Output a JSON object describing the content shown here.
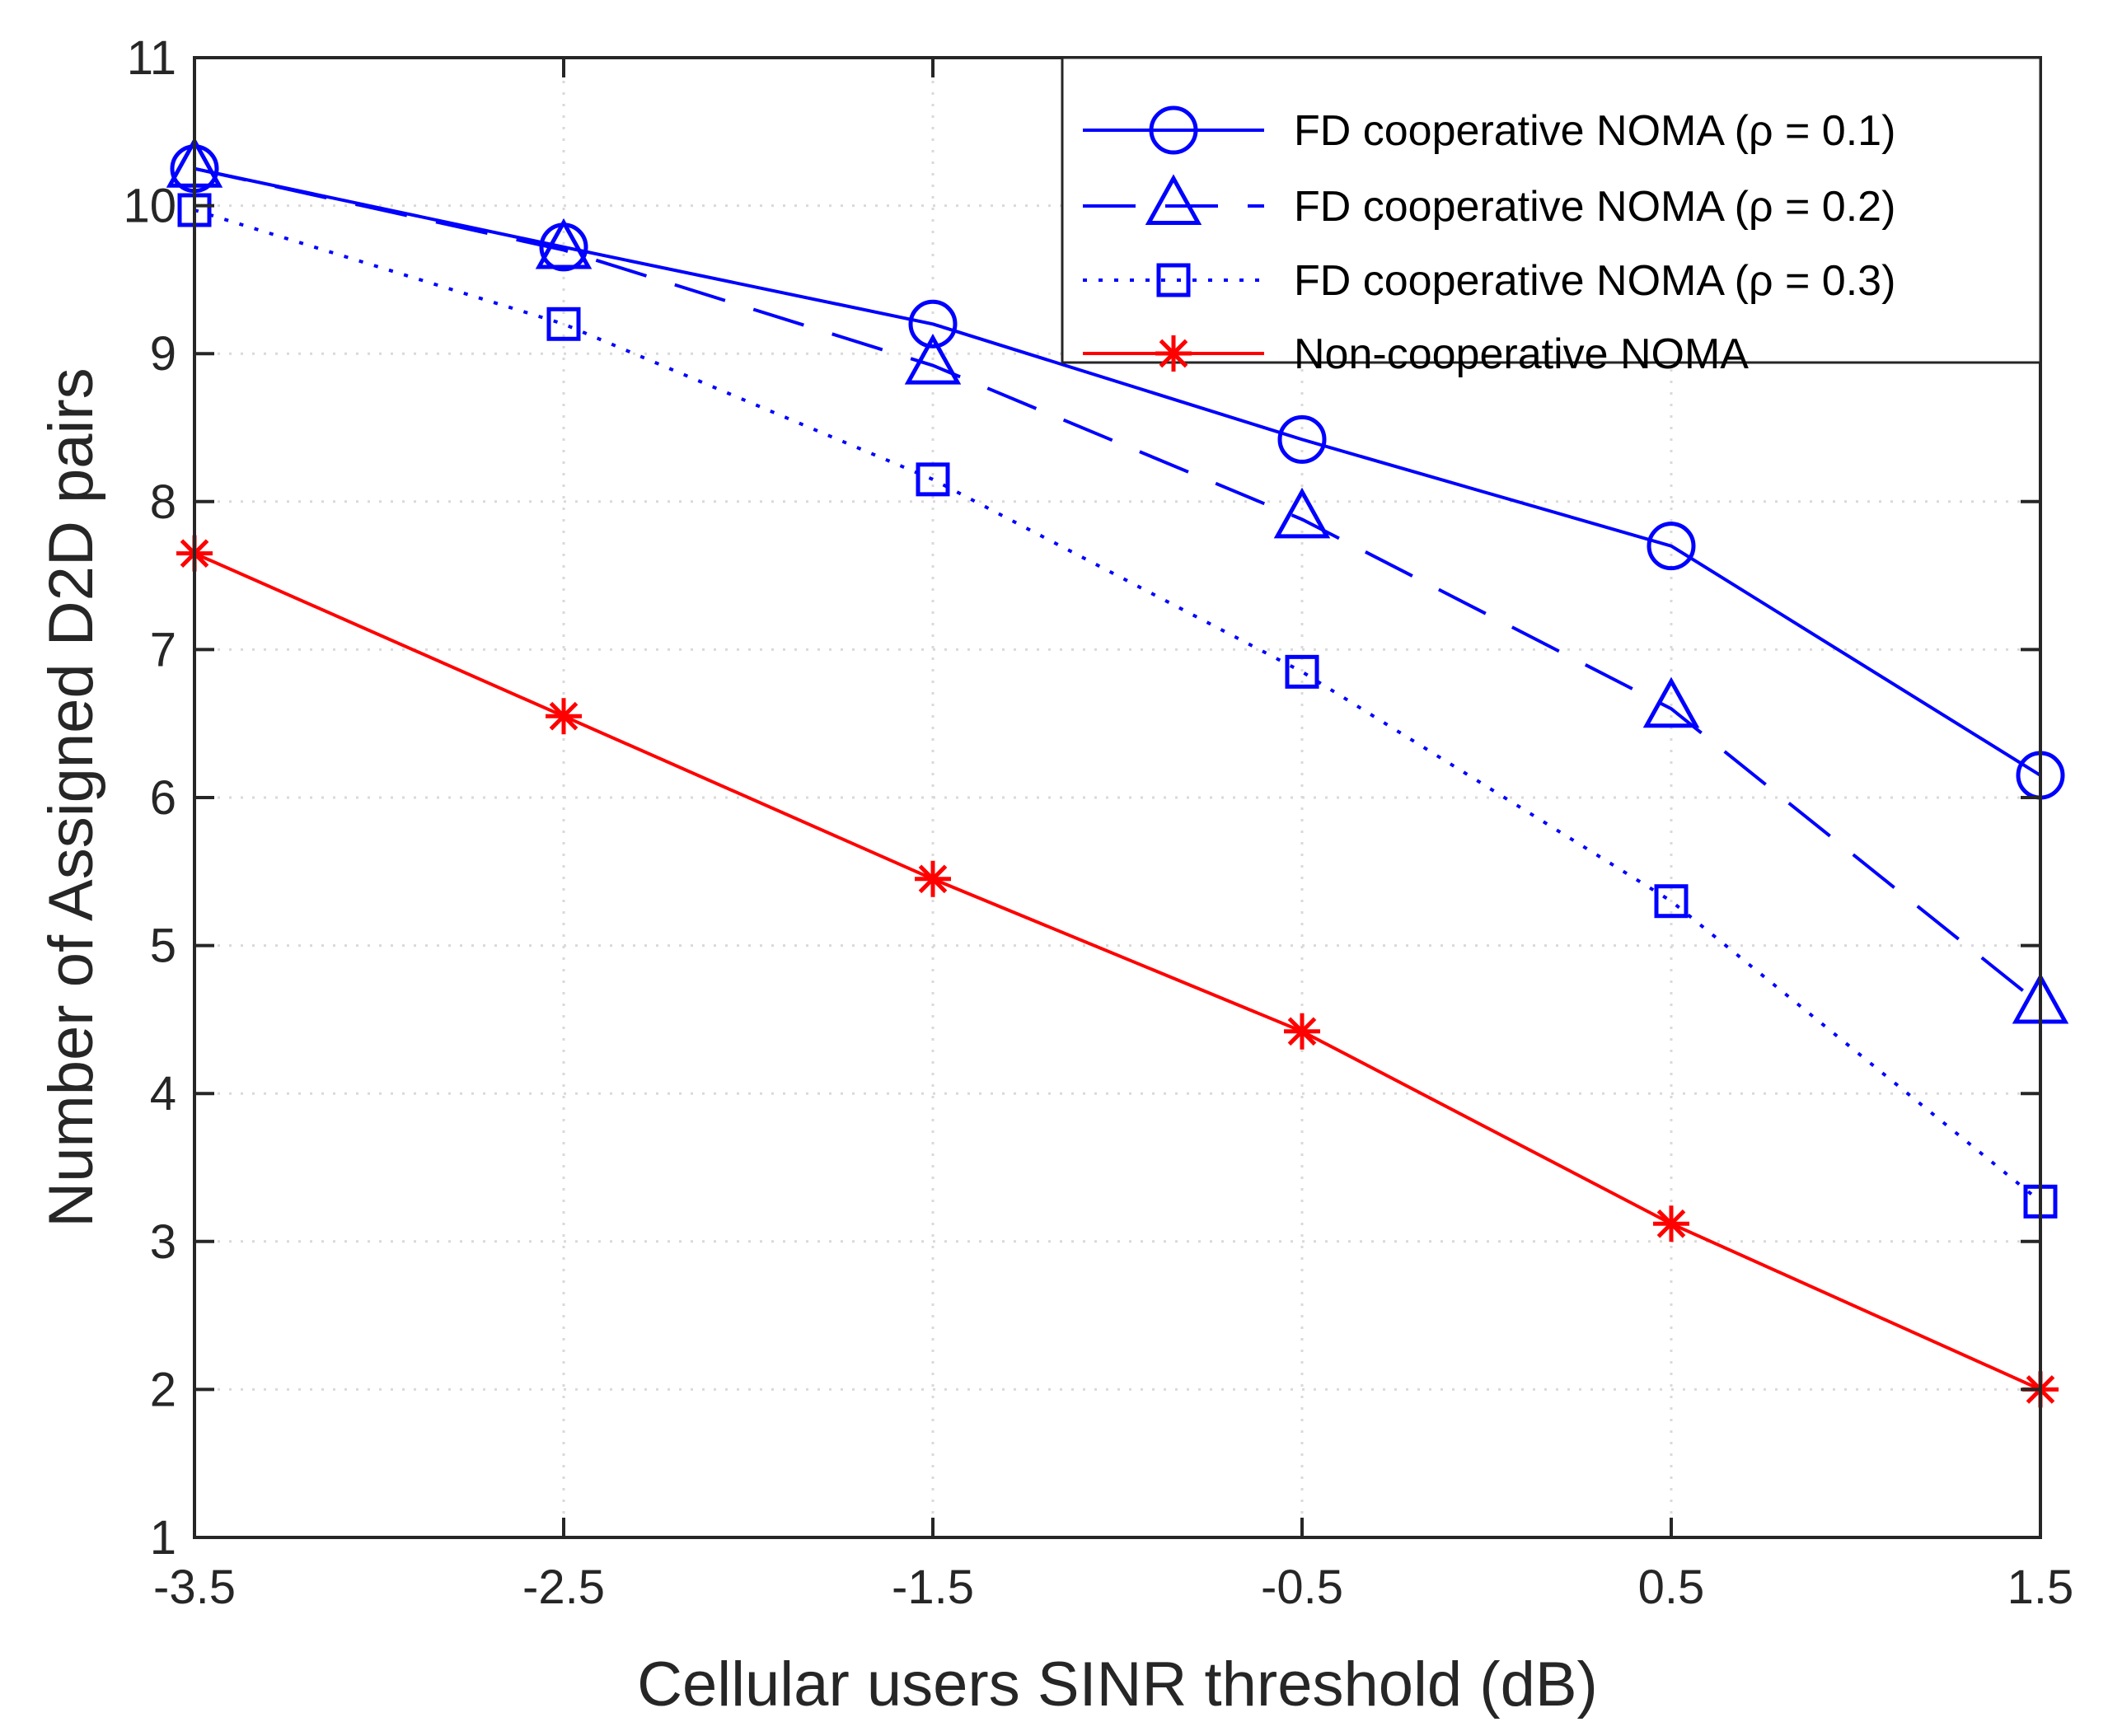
{
  "chart_data": {
    "type": "line",
    "title": "",
    "xlabel": "Cellular users SINR threshold (dB)",
    "ylabel": "Number of Assigned D2D pairs",
    "x": [
      -3.5,
      -2.5,
      -1.5,
      -0.5,
      0.5,
      1.5
    ],
    "xlim": [
      -3.5,
      1.5
    ],
    "ylim": [
      1,
      11
    ],
    "xticks": [
      -3.5,
      -2.5,
      -1.5,
      -0.5,
      0.5,
      1.5
    ],
    "xtick_labels": [
      "-3.5",
      "-2.5",
      "-1.5",
      "-0.5",
      "0.5",
      "1.5"
    ],
    "yticks": [
      1,
      2,
      3,
      4,
      5,
      6,
      7,
      8,
      9,
      10,
      11
    ],
    "ytick_labels": [
      "1",
      "2",
      "3",
      "4",
      "5",
      "6",
      "7",
      "8",
      "9",
      "10",
      "11"
    ],
    "grid": true,
    "legend_position": "top-right",
    "series": [
      {
        "name": "FD cooperative NOMA (ρ = 0.1)",
        "values": [
          10.25,
          9.72,
          9.2,
          8.42,
          7.7,
          6.15
        ],
        "color": "#0000ff",
        "marker": "circle",
        "line": "solid"
      },
      {
        "name": "FD cooperative NOMA (ρ = 0.2)",
        "values": [
          10.25,
          9.7,
          8.92,
          7.88,
          6.6,
          4.6
        ],
        "color": "#0000ff",
        "marker": "triangle",
        "line": "dashed"
      },
      {
        "name": "FD cooperative NOMA (ρ = 0.3)",
        "values": [
          9.97,
          9.2,
          8.15,
          6.85,
          5.3,
          3.27
        ],
        "color": "#0000ff",
        "marker": "square",
        "line": "dotted"
      },
      {
        "name": "Non-cooperative NOMA",
        "values": [
          7.65,
          6.55,
          5.45,
          4.42,
          3.12,
          2.0
        ],
        "color": "#ff0000",
        "marker": "asterisk",
        "line": "solid"
      }
    ]
  }
}
